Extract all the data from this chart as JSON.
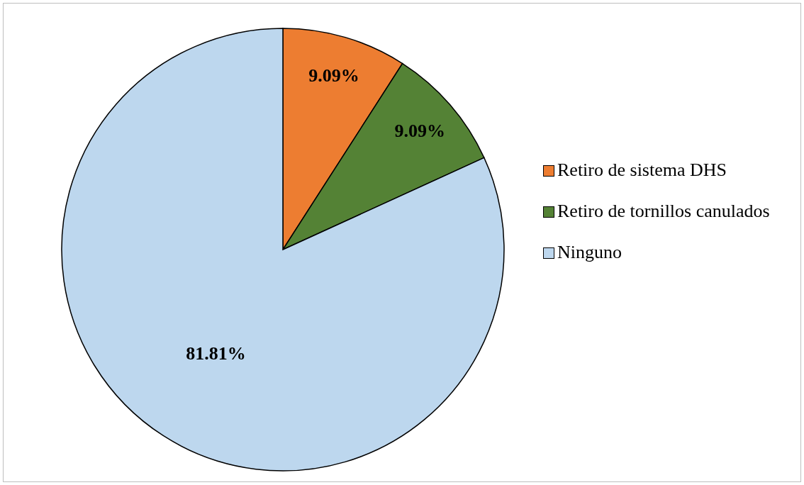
{
  "chart_data": {
    "type": "pie",
    "categories": [
      "Retiro de sistema DHS",
      "Retiro de tornillos canulados",
      "Ninguno"
    ],
    "values": [
      9.09,
      9.09,
      81.81
    ],
    "colors": [
      "#ed7d31",
      "#548235",
      "#bdd7ee"
    ],
    "value_labels": [
      "9.09%",
      "9.09%",
      "81.81%"
    ],
    "legend": "right"
  }
}
